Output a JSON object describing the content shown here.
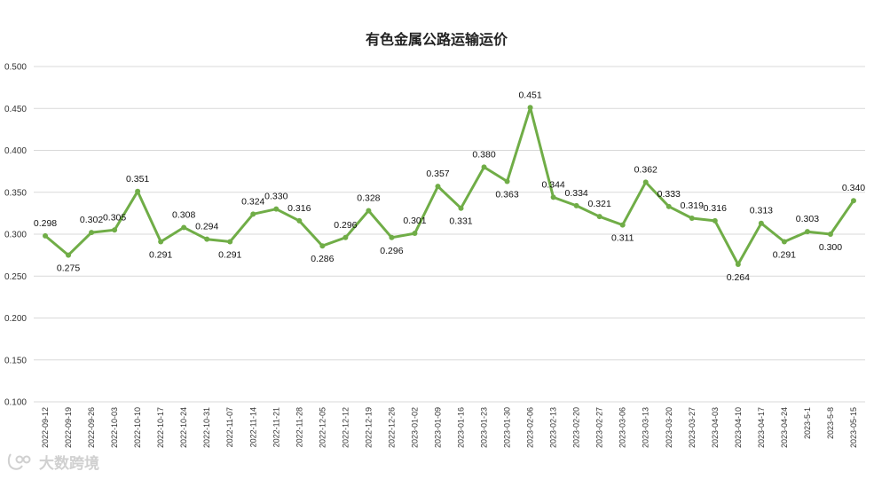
{
  "chart_data": {
    "type": "line",
    "title": "有色金属公路运输运价",
    "xlabel": "",
    "ylabel": "",
    "ylim": [
      0.1,
      0.5
    ],
    "yticks": [
      "0.500",
      "0.450",
      "0.400",
      "0.350",
      "0.300",
      "0.250",
      "0.200",
      "0.150",
      "0.100"
    ],
    "grid": true,
    "legend": "none",
    "line_color": "#70ad47",
    "categories": [
      "2022-09-12",
      "2022-09-19",
      "2022-09-26",
      "2022-10-03",
      "2022-10-10",
      "2022-10-17",
      "2022-10-24",
      "2022-10-31",
      "2022-11-07",
      "2022-11-14",
      "2022-11-21",
      "2022-11-28",
      "2022-12-05",
      "2022-12-12",
      "2022-12-19",
      "2022-12-26",
      "2023-01-02",
      "2023-01-09",
      "2023-01-16",
      "2023-01-23",
      "2023-01-30",
      "2023-02-06",
      "2023-02-13",
      "2023-02-20",
      "2023-02-27",
      "2023-03-06",
      "2023-03-13",
      "2023-03-20",
      "2023-03-27",
      "2023-04-03",
      "2023-04-10",
      "2023-04-17",
      "2023-04-24",
      "2023-5-1",
      "2023-5-8",
      "2023-05-15"
    ],
    "series": [
      {
        "values": [
          0.298,
          0.275,
          0.302,
          0.305,
          0.351,
          0.291,
          0.308,
          0.294,
          0.291,
          0.324,
          0.33,
          0.316,
          0.286,
          0.296,
          0.328,
          0.296,
          0.301,
          0.357,
          0.331,
          0.38,
          0.363,
          0.451,
          0.344,
          0.334,
          0.321,
          0.311,
          0.362,
          0.333,
          0.319,
          0.316,
          0.264,
          0.313,
          0.291,
          0.303,
          0.3,
          0.34
        ],
        "labels": [
          "0.298",
          "0.275",
          "0.302",
          "0.305",
          "0.351",
          "0.291",
          "0.308",
          "0.294",
          "0.291",
          "0.324",
          "0.330",
          "0.316",
          "0.286",
          "0.296",
          "0.328",
          "0.296",
          "0.301",
          "0.357",
          "0.331",
          "0.380",
          "0.363",
          "0.451",
          "0.344",
          "0.334",
          "0.321",
          "0.311",
          "0.362",
          "0.333",
          "0.319",
          "0.316",
          "0.264",
          "0.313",
          "0.291",
          "0.303",
          "0.300",
          "0.340"
        ]
      }
    ]
  },
  "watermark": {
    "text": "大数跨境",
    "icon": "logo-icon"
  }
}
